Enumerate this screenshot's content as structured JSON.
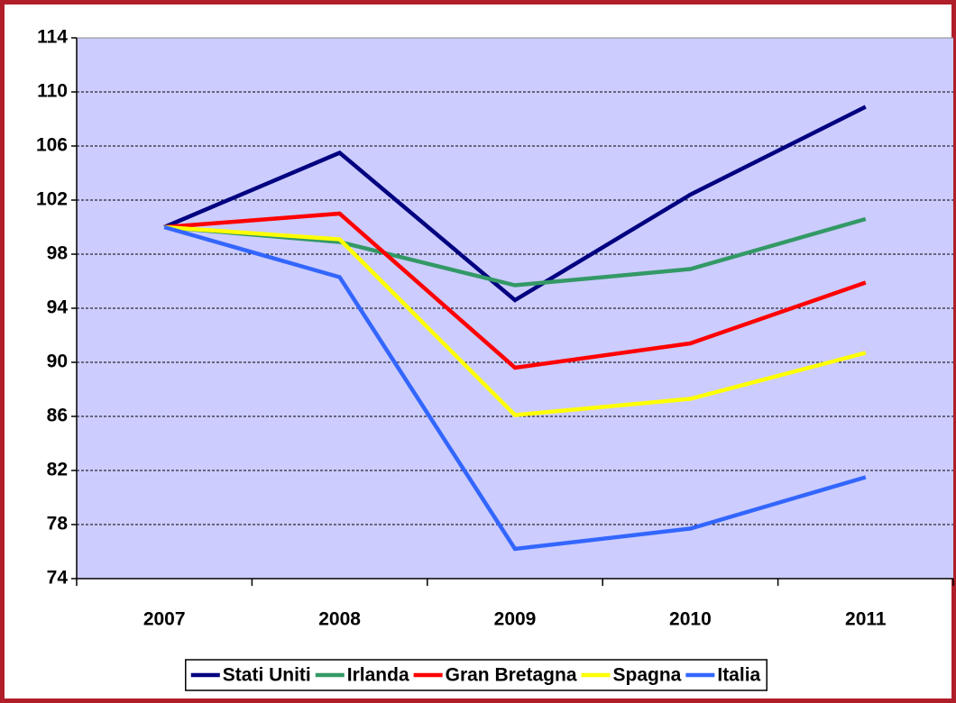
{
  "chart_data": {
    "type": "line",
    "categories": [
      "2007",
      "2008",
      "2009",
      "2010",
      "2011"
    ],
    "series": [
      {
        "name": "Stati Uniti",
        "color": "#000080",
        "values": [
          100,
          105.5,
          94.6,
          102.4,
          108.9
        ]
      },
      {
        "name": "Irlanda",
        "color": "#339966",
        "values": [
          100,
          98.9,
          95.7,
          96.9,
          100.6
        ]
      },
      {
        "name": "Gran Bretagna",
        "color": "#ff0000",
        "values": [
          100,
          101,
          89.6,
          91.4,
          95.9
        ]
      },
      {
        "name": "Spagna",
        "color": "#ffff00",
        "values": [
          100,
          99.1,
          86.1,
          87.3,
          90.7
        ]
      },
      {
        "name": "Italia",
        "color": "#3366ff",
        "values": [
          100,
          96.3,
          76.2,
          77.7,
          81.5
        ]
      }
    ],
    "ylim": [
      74,
      114
    ],
    "yticks": [
      74,
      78,
      82,
      86,
      90,
      94,
      98,
      102,
      106,
      110,
      114
    ],
    "grid": true,
    "legend": "bottom",
    "background": "#ccccff"
  }
}
